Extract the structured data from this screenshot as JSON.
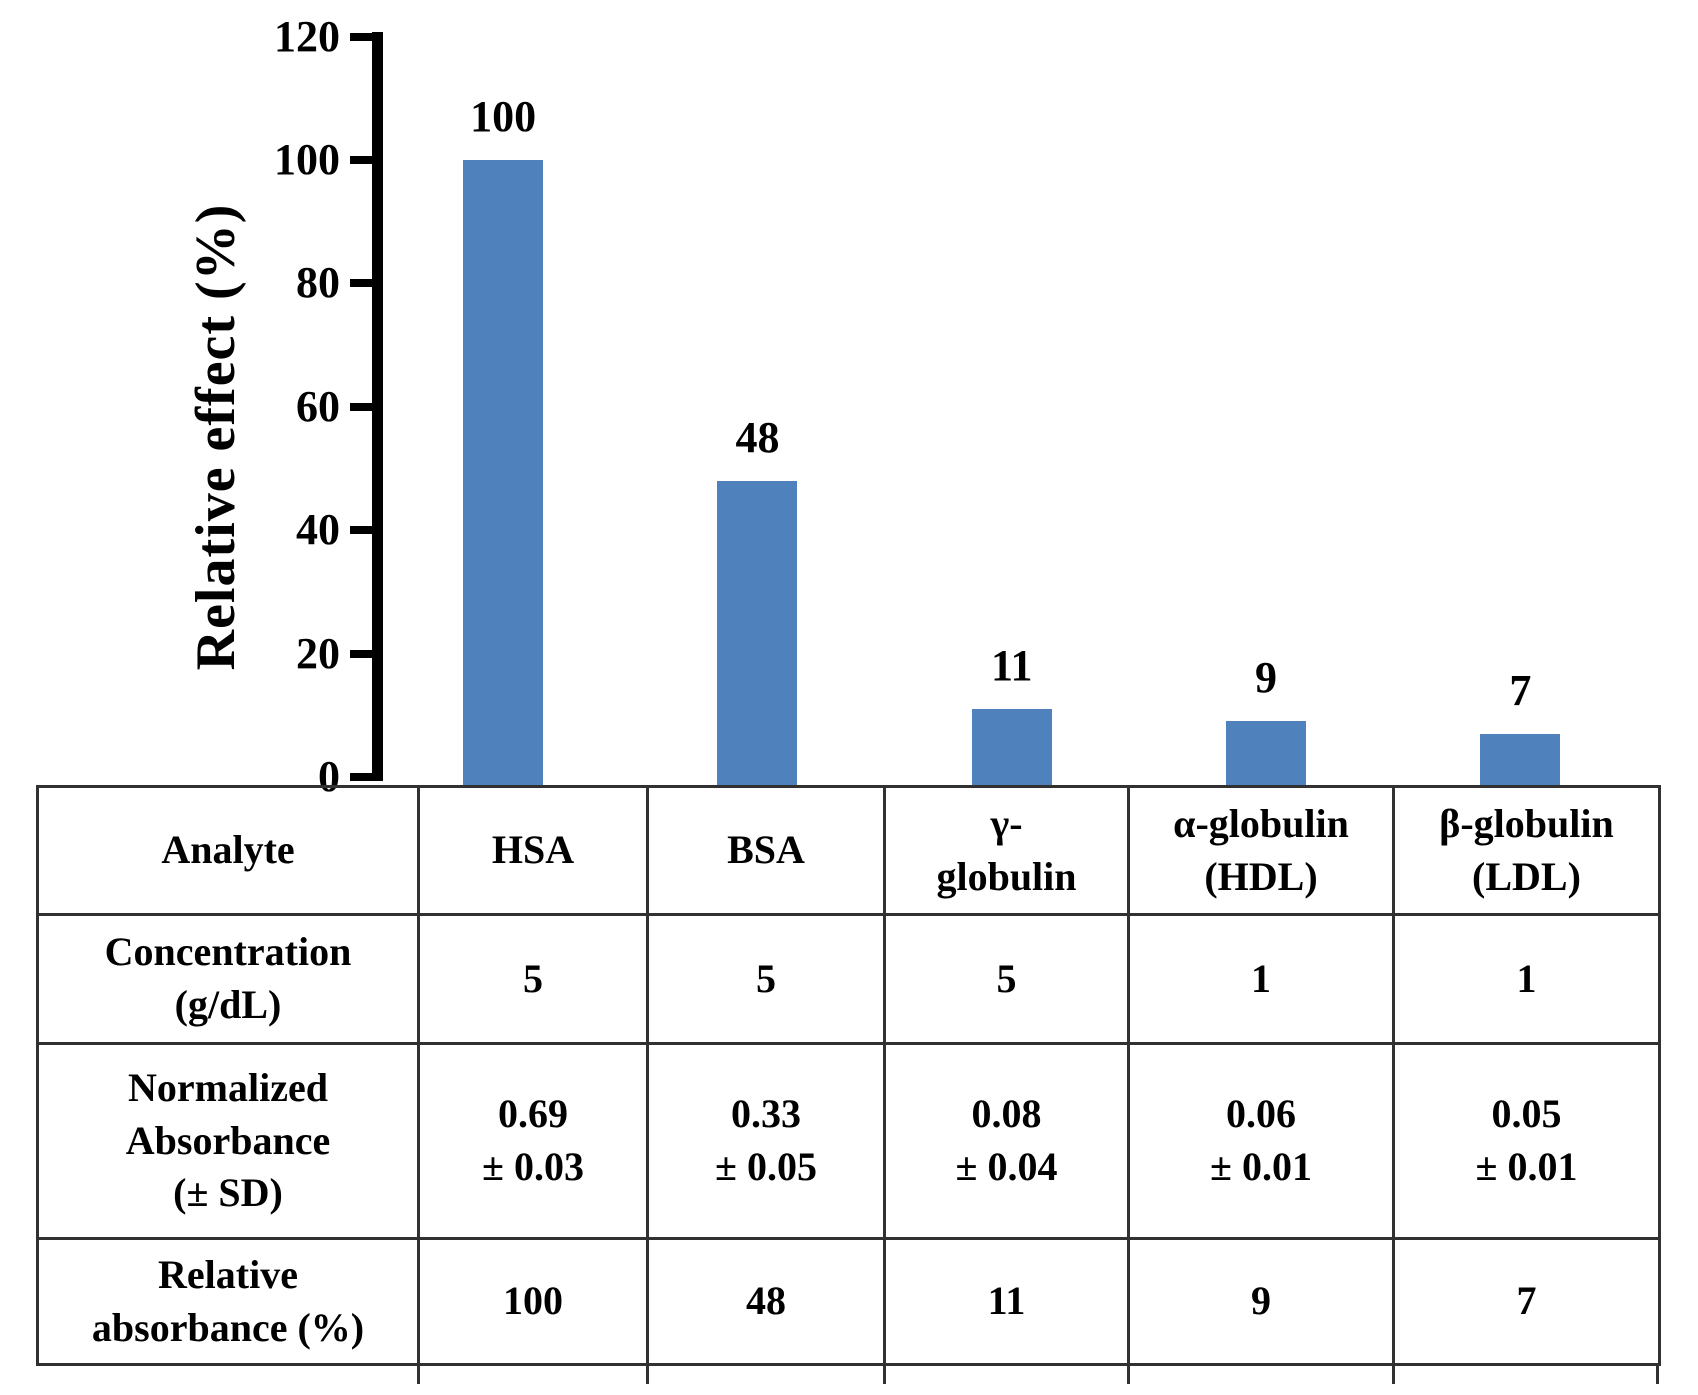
{
  "chart_data": {
    "type": "bar",
    "title": "",
    "xlabel": "",
    "ylabel": "Relative effect (%)",
    "ylim": [
      0,
      120
    ],
    "yticks": [
      0,
      20,
      40,
      60,
      80,
      100,
      120
    ],
    "categories": [
      "HSA",
      "BSA",
      "γ-globulin",
      "α-globulin (HDL)",
      "β-globulin (LDL)"
    ],
    "values": [
      100,
      48,
      11,
      9,
      7
    ],
    "bar_labels": [
      "100",
      "48",
      "11",
      "9",
      "7"
    ],
    "bar_color": "#4F81BD",
    "grid": false,
    "legend": false
  },
  "table": {
    "row_headers": [
      "Analyte",
      "Concentration\n(g/dL)",
      "Normalized\nAbsorbance\n(± SD)",
      "Relative\nabsorbance (%)"
    ],
    "rows": [
      [
        "HSA",
        "BSA",
        "γ-\nglobulin",
        "α-globulin\n(HDL)",
        "β-globulin\n(LDL)"
      ],
      [
        "5",
        "5",
        "5",
        "1",
        "1"
      ],
      [
        "0.69\n± 0.03",
        "0.33\n± 0.05",
        "0.08\n± 0.04",
        "0.06\n± 0.01",
        "0.05\n± 0.01"
      ],
      [
        "100",
        "48",
        "11",
        "9",
        "7"
      ]
    ]
  }
}
